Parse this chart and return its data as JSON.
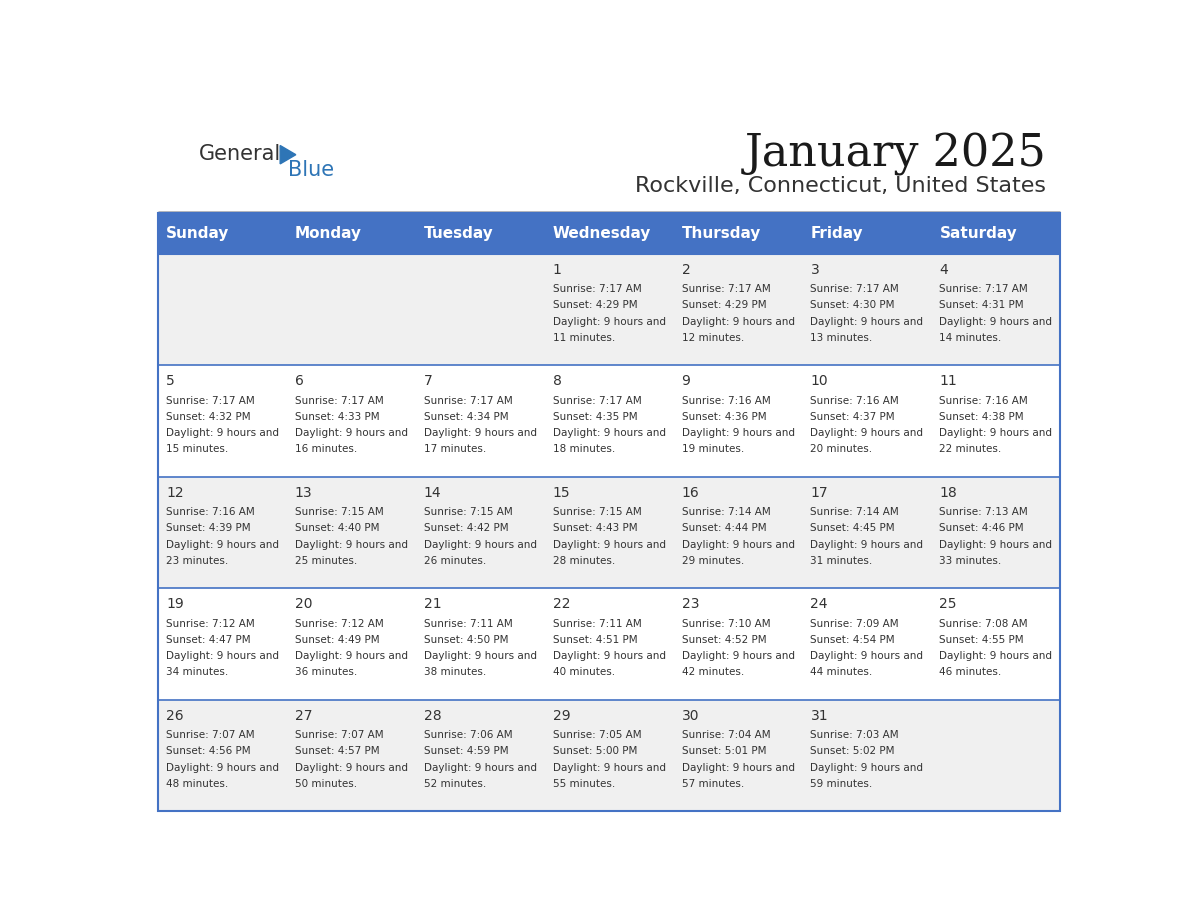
{
  "title": "January 2025",
  "subtitle": "Rockville, Connecticut, United States",
  "header_bg": "#4472C4",
  "header_text_color": "#FFFFFF",
  "header_font_size": 11,
  "day_names": [
    "Sunday",
    "Monday",
    "Tuesday",
    "Wednesday",
    "Thursday",
    "Friday",
    "Saturday"
  ],
  "title_font_size": 32,
  "subtitle_font_size": 16,
  "cell_text_color": "#333333",
  "row_colors": [
    "#F0F0F0",
    "#FFFFFF"
  ],
  "border_color": "#4472C4",
  "logo_general_color": "#333333",
  "logo_blue_color": "#2E75B6",
  "days": [
    {
      "day": 1,
      "col": 3,
      "row": 0,
      "sunrise": "7:17 AM",
      "sunset": "4:29 PM",
      "daylight": "9 hours and 11 minutes."
    },
    {
      "day": 2,
      "col": 4,
      "row": 0,
      "sunrise": "7:17 AM",
      "sunset": "4:29 PM",
      "daylight": "9 hours and 12 minutes."
    },
    {
      "day": 3,
      "col": 5,
      "row": 0,
      "sunrise": "7:17 AM",
      "sunset": "4:30 PM",
      "daylight": "9 hours and 13 minutes."
    },
    {
      "day": 4,
      "col": 6,
      "row": 0,
      "sunrise": "7:17 AM",
      "sunset": "4:31 PM",
      "daylight": "9 hours and 14 minutes."
    },
    {
      "day": 5,
      "col": 0,
      "row": 1,
      "sunrise": "7:17 AM",
      "sunset": "4:32 PM",
      "daylight": "9 hours and 15 minutes."
    },
    {
      "day": 6,
      "col": 1,
      "row": 1,
      "sunrise": "7:17 AM",
      "sunset": "4:33 PM",
      "daylight": "9 hours and 16 minutes."
    },
    {
      "day": 7,
      "col": 2,
      "row": 1,
      "sunrise": "7:17 AM",
      "sunset": "4:34 PM",
      "daylight": "9 hours and 17 minutes."
    },
    {
      "day": 8,
      "col": 3,
      "row": 1,
      "sunrise": "7:17 AM",
      "sunset": "4:35 PM",
      "daylight": "9 hours and 18 minutes."
    },
    {
      "day": 9,
      "col": 4,
      "row": 1,
      "sunrise": "7:16 AM",
      "sunset": "4:36 PM",
      "daylight": "9 hours and 19 minutes."
    },
    {
      "day": 10,
      "col": 5,
      "row": 1,
      "sunrise": "7:16 AM",
      "sunset": "4:37 PM",
      "daylight": "9 hours and 20 minutes."
    },
    {
      "day": 11,
      "col": 6,
      "row": 1,
      "sunrise": "7:16 AM",
      "sunset": "4:38 PM",
      "daylight": "9 hours and 22 minutes."
    },
    {
      "day": 12,
      "col": 0,
      "row": 2,
      "sunrise": "7:16 AM",
      "sunset": "4:39 PM",
      "daylight": "9 hours and 23 minutes."
    },
    {
      "day": 13,
      "col": 1,
      "row": 2,
      "sunrise": "7:15 AM",
      "sunset": "4:40 PM",
      "daylight": "9 hours and 25 minutes."
    },
    {
      "day": 14,
      "col": 2,
      "row": 2,
      "sunrise": "7:15 AM",
      "sunset": "4:42 PM",
      "daylight": "9 hours and 26 minutes."
    },
    {
      "day": 15,
      "col": 3,
      "row": 2,
      "sunrise": "7:15 AM",
      "sunset": "4:43 PM",
      "daylight": "9 hours and 28 minutes."
    },
    {
      "day": 16,
      "col": 4,
      "row": 2,
      "sunrise": "7:14 AM",
      "sunset": "4:44 PM",
      "daylight": "9 hours and 29 minutes."
    },
    {
      "day": 17,
      "col": 5,
      "row": 2,
      "sunrise": "7:14 AM",
      "sunset": "4:45 PM",
      "daylight": "9 hours and 31 minutes."
    },
    {
      "day": 18,
      "col": 6,
      "row": 2,
      "sunrise": "7:13 AM",
      "sunset": "4:46 PM",
      "daylight": "9 hours and 33 minutes."
    },
    {
      "day": 19,
      "col": 0,
      "row": 3,
      "sunrise": "7:12 AM",
      "sunset": "4:47 PM",
      "daylight": "9 hours and 34 minutes."
    },
    {
      "day": 20,
      "col": 1,
      "row": 3,
      "sunrise": "7:12 AM",
      "sunset": "4:49 PM",
      "daylight": "9 hours and 36 minutes."
    },
    {
      "day": 21,
      "col": 2,
      "row": 3,
      "sunrise": "7:11 AM",
      "sunset": "4:50 PM",
      "daylight": "9 hours and 38 minutes."
    },
    {
      "day": 22,
      "col": 3,
      "row": 3,
      "sunrise": "7:11 AM",
      "sunset": "4:51 PM",
      "daylight": "9 hours and 40 minutes."
    },
    {
      "day": 23,
      "col": 4,
      "row": 3,
      "sunrise": "7:10 AM",
      "sunset": "4:52 PM",
      "daylight": "9 hours and 42 minutes."
    },
    {
      "day": 24,
      "col": 5,
      "row": 3,
      "sunrise": "7:09 AM",
      "sunset": "4:54 PM",
      "daylight": "9 hours and 44 minutes."
    },
    {
      "day": 25,
      "col": 6,
      "row": 3,
      "sunrise": "7:08 AM",
      "sunset": "4:55 PM",
      "daylight": "9 hours and 46 minutes."
    },
    {
      "day": 26,
      "col": 0,
      "row": 4,
      "sunrise": "7:07 AM",
      "sunset": "4:56 PM",
      "daylight": "9 hours and 48 minutes."
    },
    {
      "day": 27,
      "col": 1,
      "row": 4,
      "sunrise": "7:07 AM",
      "sunset": "4:57 PM",
      "daylight": "9 hours and 50 minutes."
    },
    {
      "day": 28,
      "col": 2,
      "row": 4,
      "sunrise": "7:06 AM",
      "sunset": "4:59 PM",
      "daylight": "9 hours and 52 minutes."
    },
    {
      "day": 29,
      "col": 3,
      "row": 4,
      "sunrise": "7:05 AM",
      "sunset": "5:00 PM",
      "daylight": "9 hours and 55 minutes."
    },
    {
      "day": 30,
      "col": 4,
      "row": 4,
      "sunrise": "7:04 AM",
      "sunset": "5:01 PM",
      "daylight": "9 hours and 57 minutes."
    },
    {
      "day": 31,
      "col": 5,
      "row": 4,
      "sunrise": "7:03 AM",
      "sunset": "5:02 PM",
      "daylight": "9 hours and 59 minutes."
    }
  ]
}
